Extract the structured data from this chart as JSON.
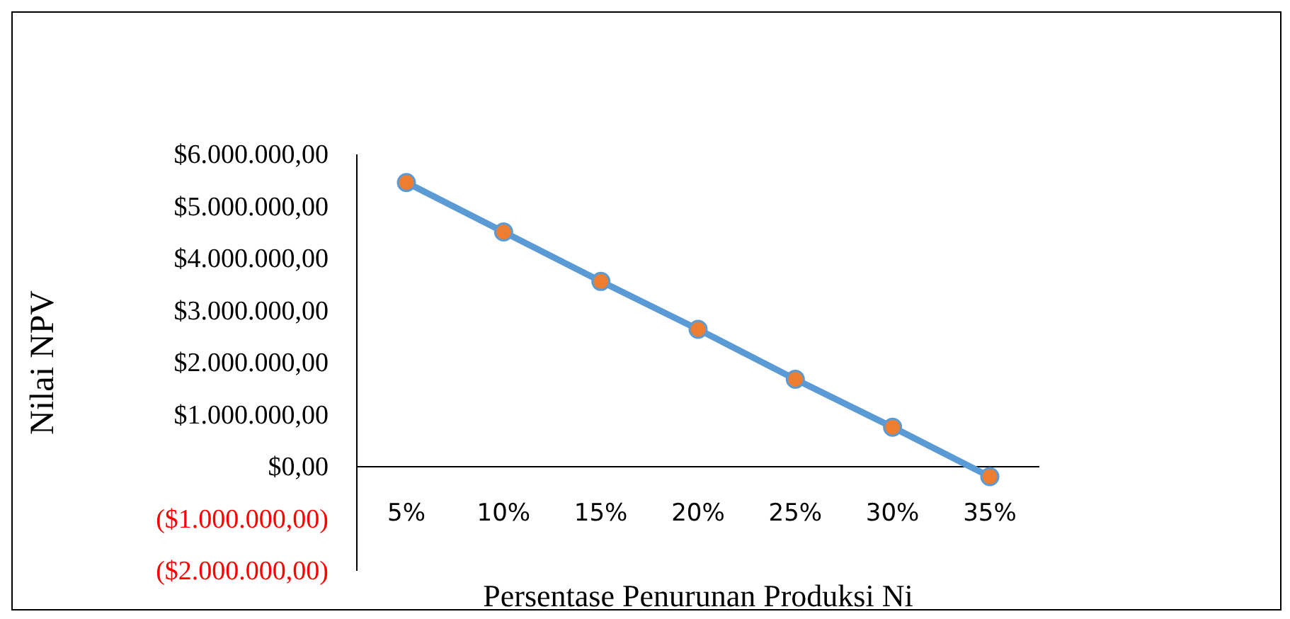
{
  "chart_data": {
    "type": "line",
    "xlabel": "Persentase Penurunan Produksi Ni",
    "ylabel": "Nilai NPV",
    "categories": [
      "5%",
      "10%",
      "15%",
      "20%",
      "25%",
      "30%",
      "35%"
    ],
    "series": [
      {
        "color": "#5b9bd5",
        "values": [
          5460000,
          4510000,
          3560000,
          2640000,
          1680000,
          760000,
          -190000
        ]
      }
    ],
    "ylim": [
      -2000000,
      6000000
    ],
    "yticks": [
      {
        "value": -2000000,
        "label": "($2.000.000,00)"
      },
      {
        "value": -1000000,
        "label": "($1.000.000,00)"
      },
      {
        "value": 0,
        "label": "$0,00"
      },
      {
        "value": 1000000,
        "label": "$1.000.000,00"
      },
      {
        "value": 2000000,
        "label": "$2.000.000,00"
      },
      {
        "value": 3000000,
        "label": "$3.000.000,00"
      },
      {
        "value": 4000000,
        "label": "$4.000.000,00"
      },
      {
        "value": 5000000,
        "label": "$5.000.000,00"
      },
      {
        "value": 6000000,
        "label": "$6.000.000,00"
      }
    ],
    "grid": false,
    "legend": false,
    "marker": "circle",
    "line_style": "solid"
  }
}
